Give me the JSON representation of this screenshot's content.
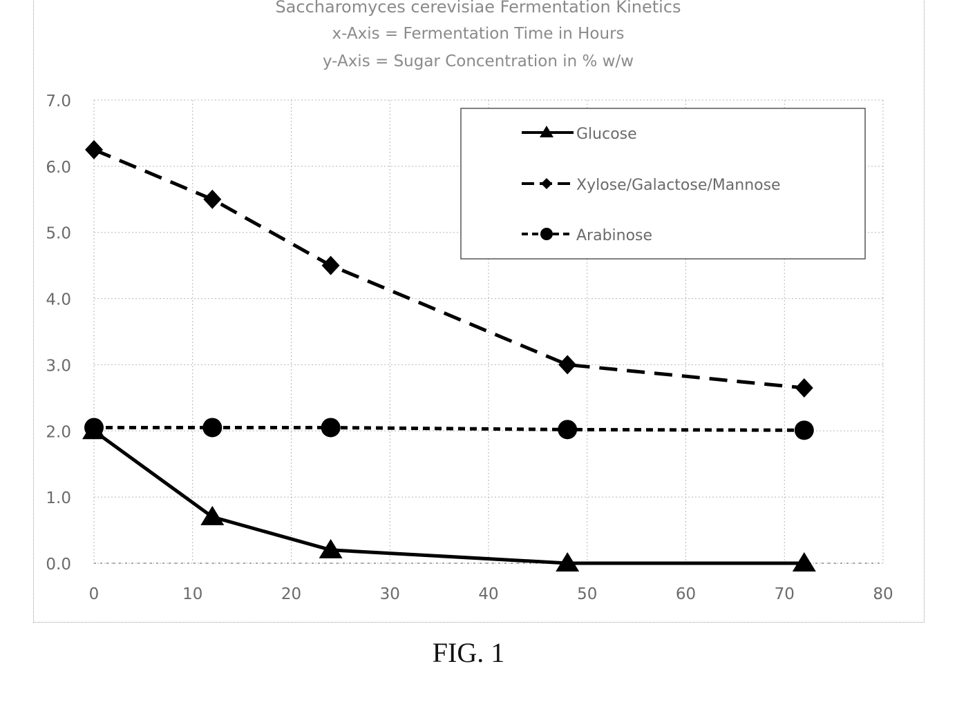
{
  "figure_label": "FIG. 1",
  "chart_data": {
    "type": "line",
    "title": "Saccharomyces cerevisiae Fermentation Kinetics",
    "subtitle_lines": [
      "x-Axis = Fermentation Time in Hours",
      "y-Axis = Sugar Concentration in % w/w"
    ],
    "xlabel": "",
    "ylabel": "",
    "xlim": [
      0,
      80
    ],
    "ylim": [
      0,
      7
    ],
    "x_ticks": [
      "0",
      "10",
      "20",
      "30",
      "40",
      "50",
      "60",
      "70",
      "80"
    ],
    "y_ticks": [
      "0.0",
      "1.0",
      "2.0",
      "3.0",
      "4.0",
      "5.0",
      "6.0",
      "7.0"
    ],
    "grid": true,
    "legend_position": "top-right",
    "x": [
      0,
      12,
      24,
      48,
      72
    ],
    "series": [
      {
        "name": "Glucose",
        "marker": "triangle",
        "line_style": "solid",
        "values": [
          2.0,
          0.7,
          0.2,
          0.0,
          0.0
        ]
      },
      {
        "name": "Xylose/Galactose/Mannose",
        "marker": "diamond",
        "line_style": "long-dash",
        "values": [
          6.25,
          5.5,
          4.5,
          3.0,
          2.65
        ]
      },
      {
        "name": "Arabinose",
        "marker": "circle",
        "line_style": "short-dash",
        "values": [
          2.05,
          2.05,
          2.05,
          2.02,
          2.01
        ]
      }
    ],
    "colors": {
      "line": "#000000",
      "grid": "#b5b5b5",
      "axis_text": "#6a6a6a",
      "legend_border": "#555555"
    }
  }
}
